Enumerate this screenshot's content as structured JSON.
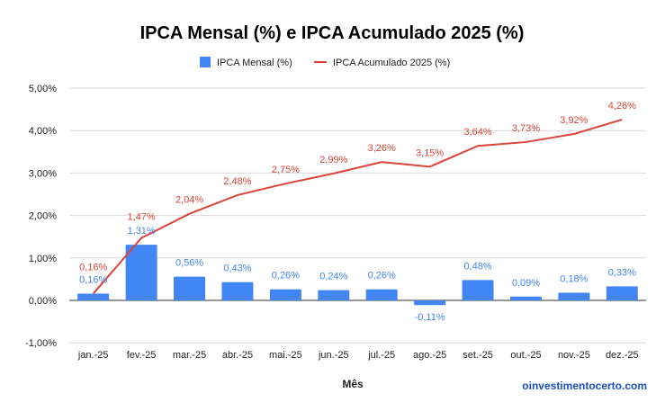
{
  "chart_data": {
    "type": "bar+line",
    "title": "IPCA Mensal (%) e IPCA Acumulado 2025 (%)",
    "xlabel": "Mês",
    "ylabel": "",
    "ylim": [
      -1,
      5
    ],
    "yticks": [
      "-1,00%",
      "0,00%",
      "1,00%",
      "2,00%",
      "3,00%",
      "4,00%",
      "5,00%"
    ],
    "ytick_values": [
      -1,
      0,
      1,
      2,
      3,
      4,
      5
    ],
    "grid": true,
    "legend": "top",
    "categories": [
      "jan.-25",
      "fev.-25",
      "mar.-25",
      "abr.-25",
      "mai.-25",
      "jun.-25",
      "jul.-25",
      "ago.-25",
      "set.-25",
      "out.-25",
      "nov.-25",
      "dez.-25"
    ],
    "series": [
      {
        "name": "IPCA Mensal (%)",
        "type": "bar",
        "color": "#4285f4",
        "values": [
          0.16,
          1.31,
          0.56,
          0.43,
          0.26,
          0.24,
          0.26,
          -0.11,
          0.48,
          0.09,
          0.18,
          0.33
        ],
        "labels": [
          "0,16%",
          "1,31%",
          "0,56%",
          "0,43%",
          "0,26%",
          "0,24%",
          "0,26%",
          "-0,11%",
          "0,48%",
          "0,09%",
          "0,18%",
          "0,33%"
        ]
      },
      {
        "name": "IPCA Acumulado 2025 (%)",
        "type": "line",
        "color": "#db4437",
        "values": [
          0.16,
          1.47,
          2.04,
          2.48,
          2.75,
          2.99,
          3.26,
          3.15,
          3.64,
          3.73,
          3.92,
          4.26
        ],
        "labels": [
          "0,16%",
          "1,47%",
          "2,04%",
          "2,48%",
          "2,75%",
          "2,99%",
          "3,26%",
          "3,15%",
          "3,64%",
          "3,73%",
          "3,92%",
          "4,26%"
        ]
      }
    ]
  },
  "watermark": "oinvestimentocerto.com"
}
